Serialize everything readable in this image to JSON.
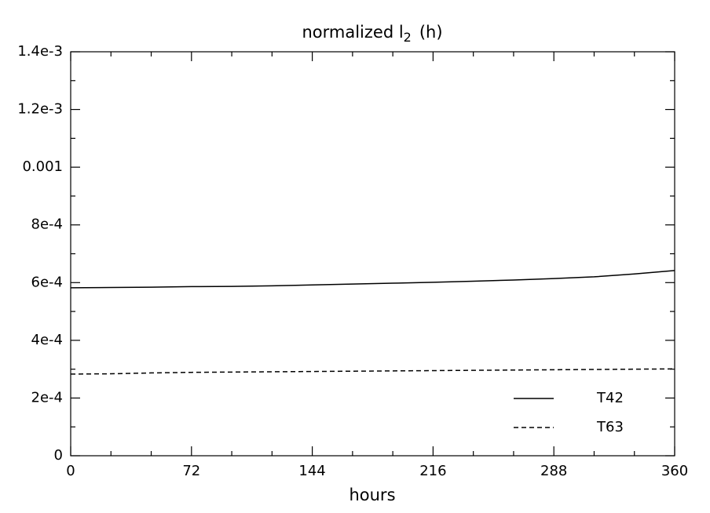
{
  "chart_data": {
    "type": "line",
    "title": {
      "text": "normalized l",
      "subscript": "2",
      "suffix": "(h)"
    },
    "x_label": "hours",
    "x": [
      0,
      24,
      48,
      72,
      96,
      120,
      144,
      168,
      192,
      216,
      240,
      264,
      288,
      312,
      336,
      360
    ],
    "series": [
      {
        "name": "T42",
        "color": "#000000",
        "dash": "solid",
        "values": [
          0.000582,
          0.000583,
          0.000584,
          0.000586,
          0.000587,
          0.000589,
          0.000592,
          0.000595,
          0.000598,
          0.000601,
          0.000605,
          0.000609,
          0.000614,
          0.00062,
          0.00063,
          0.000642
        ]
      },
      {
        "name": "T63",
        "color": "#000000",
        "dash": "dashed",
        "values": [
          0.000283,
          0.000284,
          0.000287,
          0.000289,
          0.00029,
          0.000291,
          0.000292,
          0.000293,
          0.000294,
          0.000295,
          0.000296,
          0.000297,
          0.000298,
          0.000299,
          0.0003,
          0.000301
        ]
      }
    ],
    "xlim": [
      0,
      360
    ],
    "xticks": [
      0,
      72,
      144,
      216,
      288,
      360
    ],
    "x_minor_ticks": [
      24,
      48,
      96,
      120,
      168,
      192,
      240,
      264,
      312,
      336
    ],
    "ylim": [
      0,
      0.0014
    ],
    "yticks": [
      0,
      {
        "value": 0.0002,
        "label": "2e-4"
      },
      {
        "value": 0.0004,
        "label": "4e-4"
      },
      {
        "value": 0.0006,
        "label": "6e-4"
      },
      {
        "value": 0.0008,
        "label": "8e-4"
      },
      0.001,
      {
        "value": 0.0012,
        "label": "1.2e-3"
      },
      {
        "value": 0.0014,
        "label": "1.4e-3"
      }
    ],
    "y_minor_ticks": [
      0.0001,
      0.0003,
      0.0005,
      0.0007,
      0.0009,
      0.0011,
      0.0013
    ],
    "grid": false,
    "legend": "lower right"
  }
}
